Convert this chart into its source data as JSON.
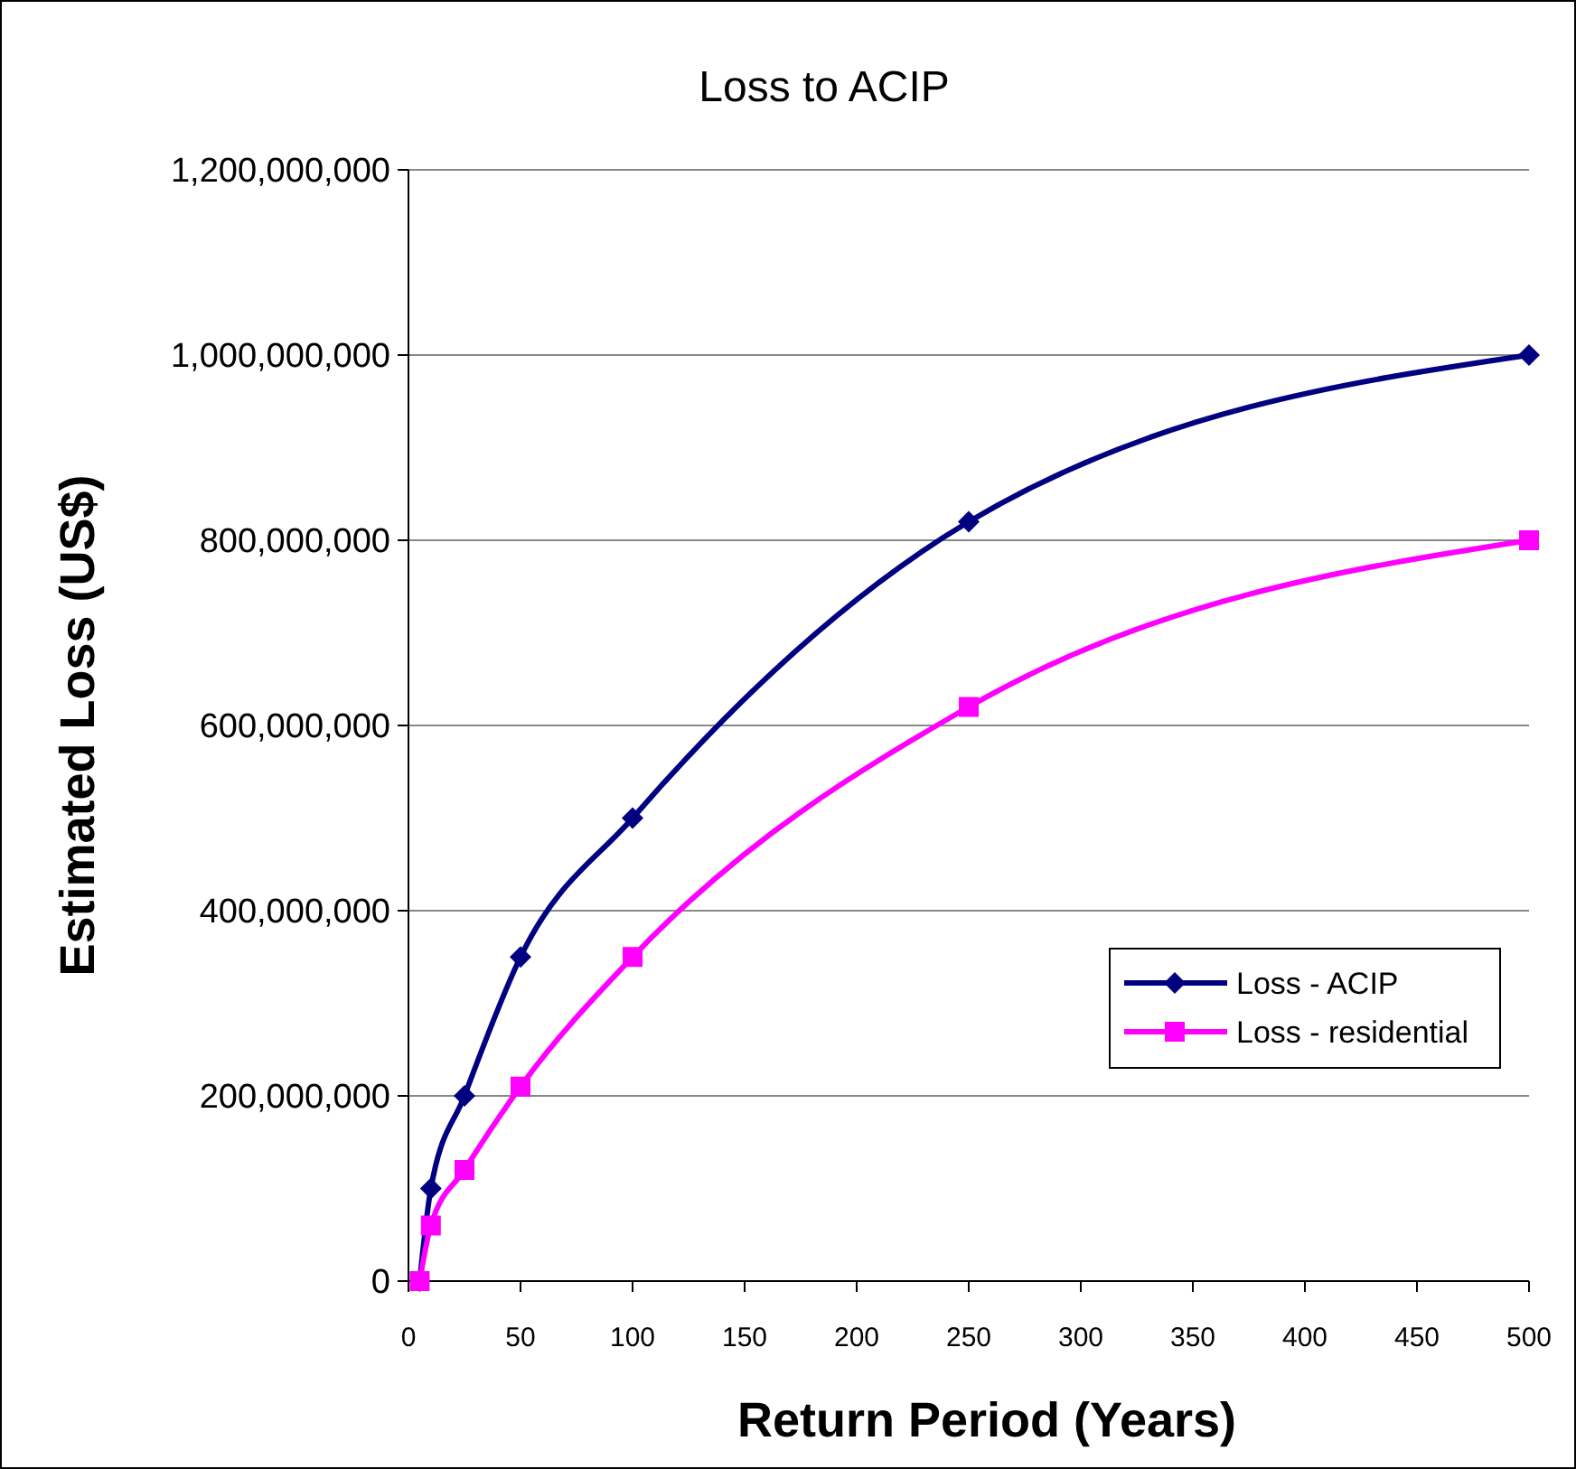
{
  "chart_data": {
    "type": "line",
    "title": "Loss to ACIP",
    "xlabel": "Return Period (Years)",
    "ylabel": "Estimated Loss (US$)",
    "x": [
      5,
      10,
      25,
      50,
      100,
      250,
      500
    ],
    "series": [
      {
        "name": "Loss - ACIP",
        "color": "#000080",
        "marker": "diamond",
        "values": [
          0,
          100000000,
          200000000,
          350000000,
          500000000,
          820000000,
          1000000000
        ]
      },
      {
        "name": "Loss - residential",
        "color": "#ff00ff",
        "marker": "square",
        "values": [
          0,
          60000000,
          120000000,
          210000000,
          350000000,
          620000000,
          800000000
        ]
      }
    ],
    "xlim": [
      0,
      500
    ],
    "xticks": [
      0,
      50,
      100,
      150,
      200,
      250,
      300,
      350,
      400,
      450,
      500
    ],
    "ylim": [
      0,
      1200000000
    ],
    "yticks": [
      {
        "value": 0,
        "label": "0"
      },
      {
        "value": 200000000,
        "label": "200,000,000"
      },
      {
        "value": 400000000,
        "label": "400,000,000"
      },
      {
        "value": 600000000,
        "label": "600,000,000"
      },
      {
        "value": 800000000,
        "label": "800,000,000"
      },
      {
        "value": 1000000000,
        "label": "1,000,000,000"
      },
      {
        "value": 1200000000,
        "label": "1,200,000,000"
      }
    ],
    "grid": "y",
    "legend": "right",
    "line_style": "solid"
  }
}
